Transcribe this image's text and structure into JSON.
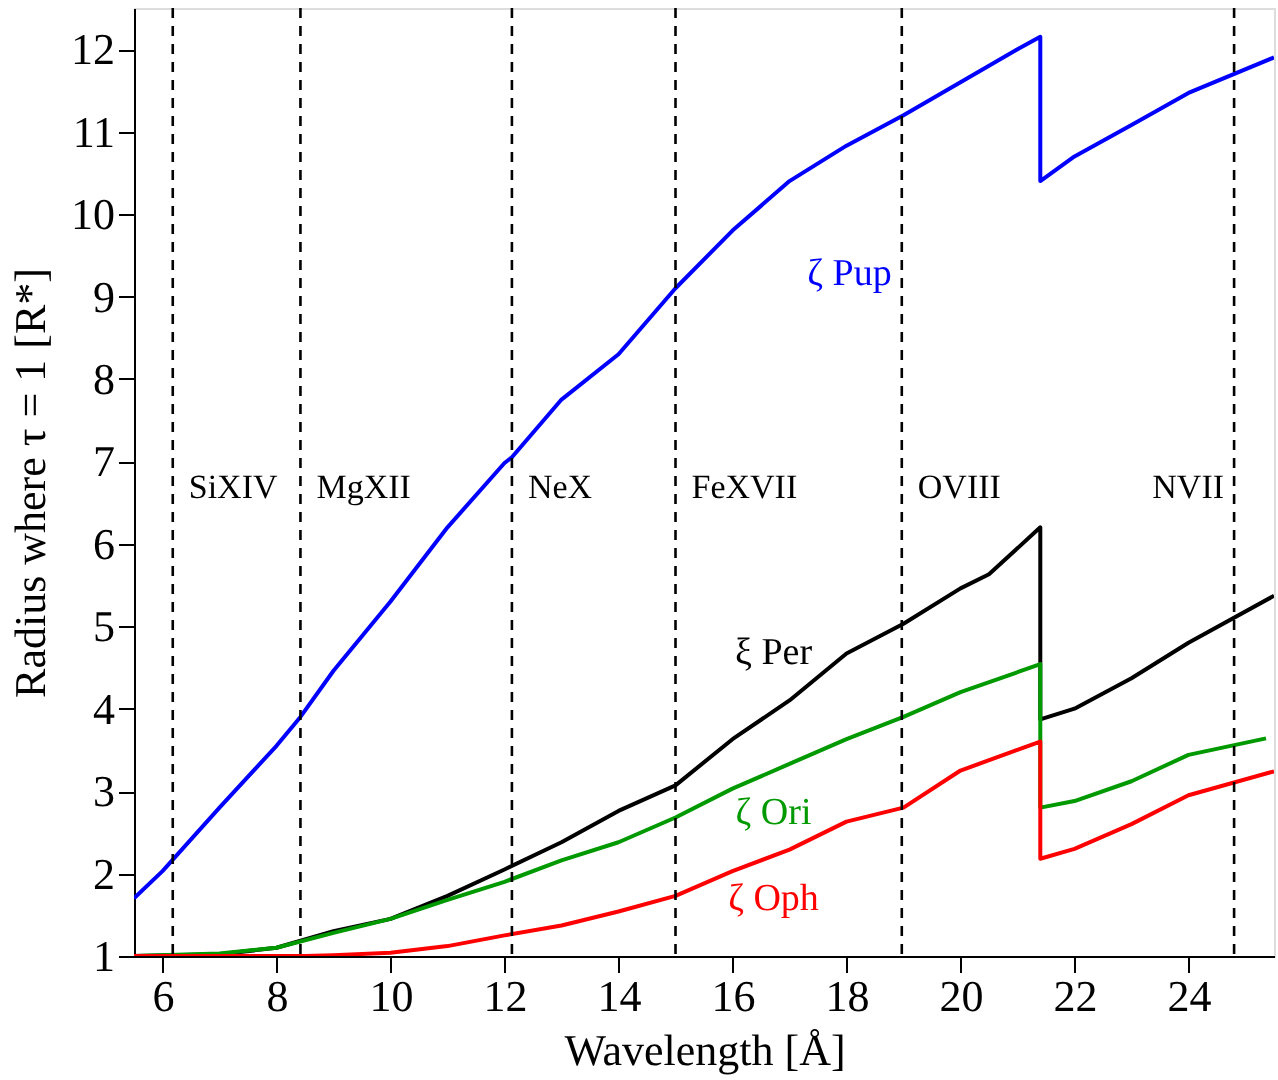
{
  "chart_data": {
    "type": "line",
    "xlabel": "Wavelength [Å]",
    "ylabel": "Radius where τ = 1  [R*]",
    "xlim": [
      5.5,
      25.5
    ],
    "ylim": [
      1,
      12.5
    ],
    "xticks": [
      6,
      8,
      10,
      12,
      14,
      16,
      18,
      20,
      22,
      24
    ],
    "yticks": [
      1,
      2,
      3,
      4,
      5,
      6,
      7,
      8,
      9,
      10,
      11,
      12
    ],
    "grid": false,
    "legend": false,
    "line_style": "solid",
    "marker": "none",
    "series": [
      {
        "name": "ζ Pup",
        "color": "#0000ff",
        "x": [
          5.5,
          6,
          7,
          8,
          8.42,
          9,
          10,
          11,
          12,
          12.13,
          13,
          14,
          15,
          16,
          17,
          18,
          19,
          20,
          21,
          21.4,
          21.4,
          22,
          23,
          24,
          25.5
        ],
        "values": [
          1.7,
          2.03,
          2.8,
          3.55,
          3.9,
          4.46,
          5.3,
          6.2,
          6.98,
          7.05,
          7.75,
          8.3,
          9.1,
          9.8,
          10.4,
          10.83,
          11.2,
          11.6,
          12.0,
          12.15,
          10.4,
          10.7,
          11.08,
          11.47,
          11.9
        ]
      },
      {
        "name": "ξ Per",
        "color": "#000000",
        "x": [
          5.5,
          7,
          8,
          9,
          10,
          11,
          12,
          13,
          14,
          15,
          16,
          17,
          18,
          19,
          20,
          20.5,
          21.4,
          21.4,
          22,
          23,
          24,
          25.5
        ],
        "values": [
          1.0,
          1.02,
          1.1,
          1.3,
          1.45,
          1.73,
          2.05,
          2.38,
          2.76,
          3.07,
          3.63,
          4.1,
          4.67,
          5.03,
          5.46,
          5.63,
          6.2,
          3.87,
          4.0,
          4.37,
          4.8,
          5.37
        ]
      },
      {
        "name": "ζ Ori",
        "color": "#009900",
        "x": [
          5.5,
          7,
          8,
          9,
          10,
          11,
          12,
          13,
          14,
          15,
          16,
          17,
          18,
          19,
          20,
          21.4,
          21.4,
          22,
          23,
          24,
          25.36
        ],
        "values": [
          1.0,
          1.03,
          1.1,
          1.28,
          1.45,
          1.68,
          1.9,
          2.16,
          2.38,
          2.68,
          3.03,
          3.33,
          3.63,
          3.9,
          4.2,
          4.54,
          2.8,
          2.88,
          3.12,
          3.44,
          3.64
        ]
      },
      {
        "name": "ζ Oph",
        "color": "#ff0000",
        "x": [
          5.5,
          8.5,
          9,
          10,
          11,
          12,
          13,
          14,
          15,
          16,
          17,
          18,
          19,
          20,
          21.4,
          21.4,
          22,
          23,
          24,
          25.5
        ],
        "values": [
          1.0,
          1.0,
          1.01,
          1.04,
          1.12,
          1.25,
          1.37,
          1.54,
          1.73,
          2.03,
          2.29,
          2.63,
          2.8,
          3.25,
          3.6,
          2.18,
          2.3,
          2.6,
          2.95,
          3.24
        ]
      }
    ],
    "ref_lines": [
      {
        "axis": "x",
        "value": 6.18,
        "label": "SiXIV",
        "color": "#000000",
        "line_style": "dashed"
      },
      {
        "axis": "x",
        "value": 8.42,
        "label": "MgXII",
        "color": "#000000",
        "line_style": "dashed"
      },
      {
        "axis": "x",
        "value": 12.13,
        "label": "NeX",
        "color": "#000000",
        "line_style": "dashed"
      },
      {
        "axis": "x",
        "value": 15.0,
        "label": "FeXVII",
        "color": "#000000",
        "line_style": "dashed"
      },
      {
        "axis": "x",
        "value": 18.97,
        "label": "OVIII",
        "color": "#000000",
        "line_style": "dashed"
      },
      {
        "axis": "x",
        "value": 24.8,
        "label": "NVII",
        "color": "#000000",
        "line_style": "dashed"
      }
    ]
  }
}
